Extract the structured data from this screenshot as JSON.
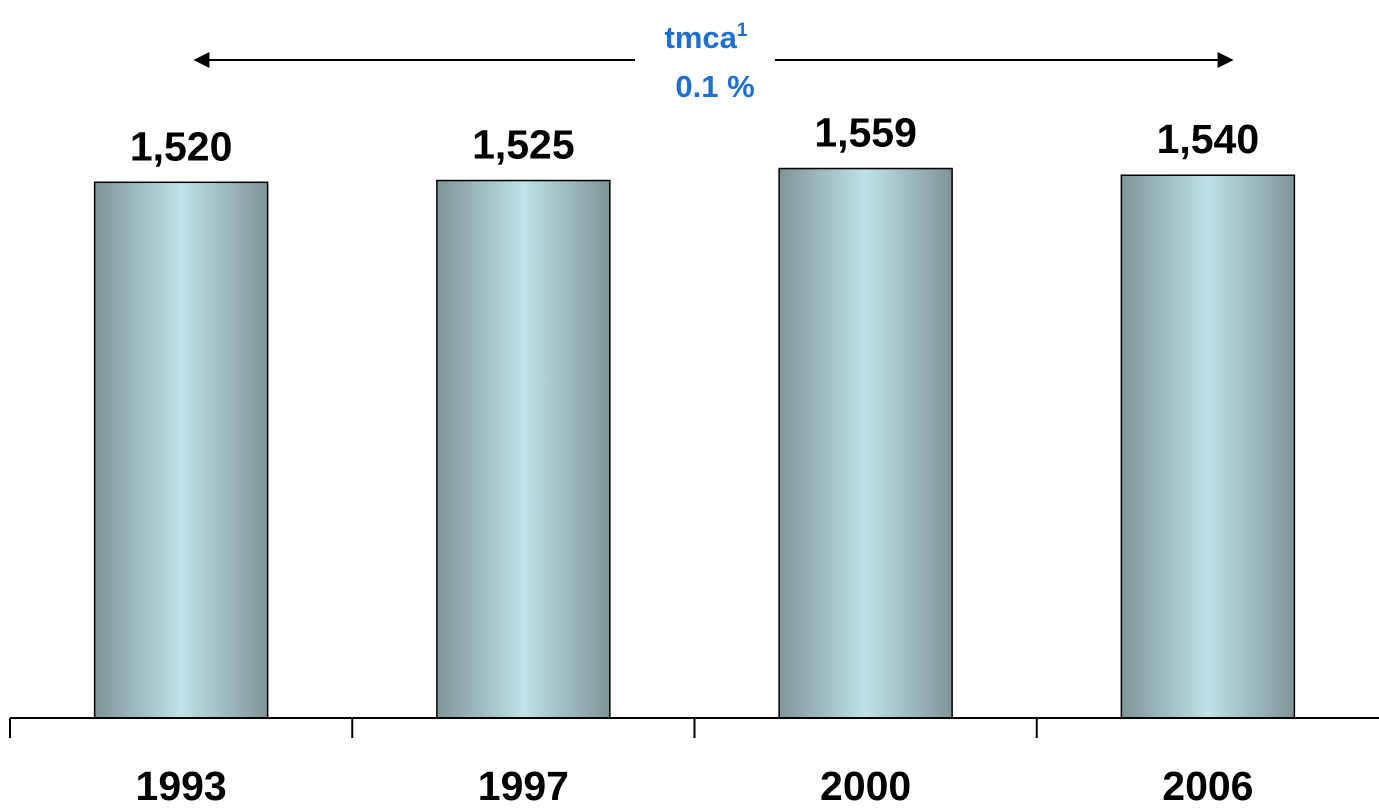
{
  "chart_data": {
    "type": "bar",
    "categories": [
      "1993",
      "1997",
      "2000",
      "2006"
    ],
    "values": [
      1520,
      1525,
      1559,
      1540
    ],
    "data_labels": [
      "1,520",
      "1,525",
      "1,559",
      "1,540"
    ],
    "title": "",
    "xlabel": "",
    "ylabel": "",
    "ylim": [
      0,
      1640
    ],
    "grid": false,
    "legend": "none"
  },
  "annotation": {
    "label": "tmca",
    "superscript": "1",
    "value": "0.1 %",
    "color": "#1F6FD1",
    "span": [
      "1993",
      "2006"
    ]
  },
  "colors": {
    "bar_edge": "#7E9698",
    "bar_center": "#BEE2E6",
    "bar_outline": "#000000",
    "axis": "#000000"
  }
}
